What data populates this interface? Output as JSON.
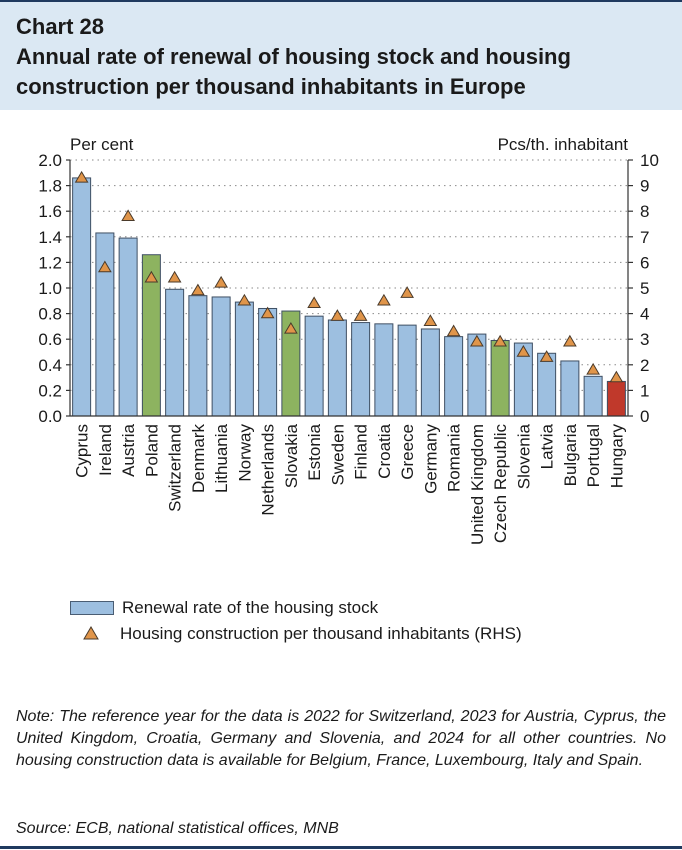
{
  "header": {
    "chart_number": "Chart 28",
    "title": "Annual rate of renewal of housing stock and housing construction per thousand inhabitants in Europe"
  },
  "colors": {
    "header_bg": "#dbe8f3",
    "bar_default": "#9dbfe0",
    "bar_highlight_green": "#8db360",
    "bar_hungary": "#c0392b",
    "triangle_fill": "#e0954a"
  },
  "chart_data": {
    "type": "bar",
    "title": "Annual rate of renewal of housing stock and housing construction per thousand inhabitants in Europe",
    "left_axis_label": "Per cent",
    "right_axis_label": "Pcs/th. inhabitant",
    "ylim_left": [
      0,
      2.0
    ],
    "ylim_right": [
      0,
      10
    ],
    "left_ticks": [
      "0.0",
      "0.2",
      "0.4",
      "0.6",
      "0.8",
      "1.0",
      "1.2",
      "1.4",
      "1.6",
      "1.8",
      "2.0"
    ],
    "right_ticks": [
      "0",
      "1",
      "2",
      "3",
      "4",
      "5",
      "6",
      "7",
      "8",
      "9",
      "10"
    ],
    "categories": [
      "Cyprus",
      "Ireland",
      "Austria",
      "Poland",
      "Switzerland",
      "Denmark",
      "Lithuania",
      "Norway",
      "Netherlands",
      "Slovakia",
      "Estonia",
      "Sweden",
      "Finland",
      "Croatia",
      "Greece",
      "Germany",
      "Romania",
      "United Kingdom",
      "Czech Republic",
      "Slovenia",
      "Latvia",
      "Bulgaria",
      "Portugal",
      "Hungary"
    ],
    "highlight": [
      "default",
      "default",
      "default",
      "green",
      "default",
      "default",
      "default",
      "default",
      "default",
      "green",
      "default",
      "default",
      "default",
      "default",
      "default",
      "default",
      "default",
      "default",
      "green",
      "default",
      "default",
      "default",
      "default",
      "red"
    ],
    "series": [
      {
        "name": "Renewal rate of the housing stock",
        "axis": "left",
        "type": "bar",
        "values": [
          1.86,
          1.43,
          1.39,
          1.26,
          0.99,
          0.94,
          0.93,
          0.89,
          0.84,
          0.82,
          0.78,
          0.75,
          0.73,
          0.72,
          0.71,
          0.68,
          0.62,
          0.64,
          0.59,
          0.57,
          0.49,
          0.43,
          0.31,
          0.27
        ]
      },
      {
        "name": "Housing construction per thousand inhabitants (RHS)",
        "axis": "right",
        "type": "marker",
        "values": [
          9.3,
          5.8,
          7.8,
          5.4,
          5.4,
          4.9,
          5.2,
          4.5,
          4.0,
          3.4,
          4.4,
          3.9,
          3.9,
          4.5,
          4.8,
          3.7,
          3.3,
          2.9,
          2.9,
          2.5,
          2.3,
          2.9,
          1.8,
          1.5
        ]
      }
    ]
  },
  "legend": {
    "bar_label": "Renewal rate of the housing stock",
    "marker_label": "Housing construction per thousand inhabitants (RHS)"
  },
  "note": "Note: The reference year for the data is 2022 for Switzerland, 2023 for Austria, Cyprus, the United Kingdom, Croatia, Germany and Slovenia, and 2024 for all other countries. No housing construction data is available for Belgium, France, Luxembourg, Italy and Spain.",
  "source": "Source: ECB, national statistical offices, MNB"
}
